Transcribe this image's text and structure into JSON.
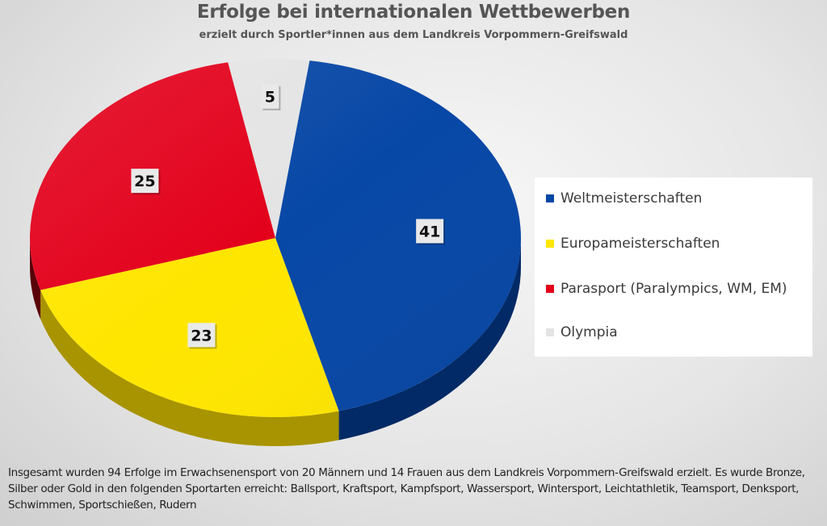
{
  "chart_data": {
    "type": "pie",
    "title": "Erfolge bei internationalen Wettbewerben",
    "subtitle": "erzielt durch Sportler*innen aus dem Landkreis Vorpommern-Greifswald",
    "slices": [
      {
        "name": "Weltmeisterschaften",
        "value": 41,
        "color": "#0747a6",
        "side_color": "#022a66"
      },
      {
        "name": "Europameisterschaften",
        "value": 23,
        "color": "#ffe600",
        "side_color": "#a89400"
      },
      {
        "name": "Parasport (Paralympics, WM, EM)",
        "value": 25,
        "color": "#e3001b",
        "side_color": "#5a0008"
      },
      {
        "name": "Olympia",
        "value": 5,
        "color": "#e4e4e4",
        "side_color": "#6a6a6a"
      }
    ],
    "legend_position": "right"
  },
  "footnote": "Insgesamt wurden 94 Erfolge im Erwachsenensport von 20 Männern und 14 Frauen aus dem Landkreis Vorpommern-Greifswald erzielt. Es wurde Bronze, Silber oder Gold in den folgenden Sportarten erreicht: Ballsport, Kraftsport, Kampfsport, Wassersport, Wintersport, Leichtathletik, Teamsport, Denksport, Schwimmen, Sportschießen, Rudern"
}
